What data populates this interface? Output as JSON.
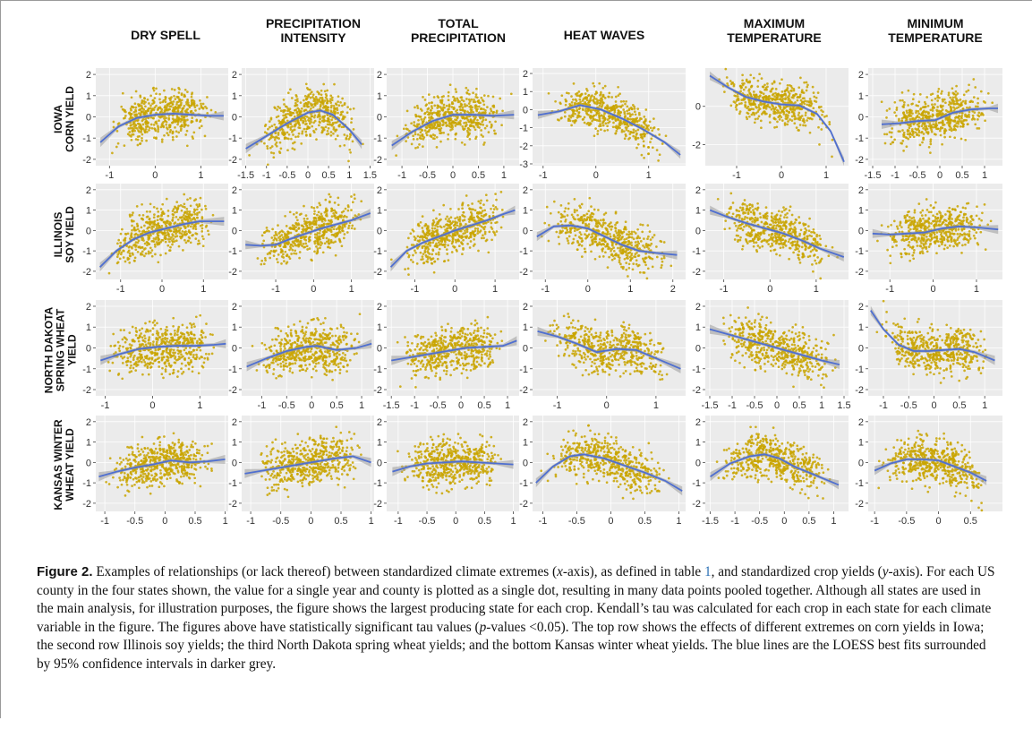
{
  "columns": [
    "DRY SPELL",
    "PRECIPITATION\nINTENSITY",
    "TOTAL\nPRECIPITATION",
    "HEAT WAVES",
    "MAXIMUM\nTEMPERATURE",
    "MINIMUM\nTEMPERATURE"
  ],
  "rows": [
    "IOWA\nCORN YIELD",
    "ILLINOIS\nSOY YIELD",
    "NORTH DAKOTA\nSPRING WHEAT\nYIELD",
    "KANSAS WINTER\nWHEAT YIELD"
  ],
  "colors": {
    "points": "#c9a400",
    "fit": "#4f6fd0",
    "ci": "#9a9a9a",
    "panel_bg": "#ebebeb",
    "grid": "#ffffff"
  },
  "chart_data": {
    "type": "scatter",
    "xlabel": "",
    "ylabel": "",
    "grid": true,
    "panels": [
      {
        "row": 0,
        "col": 0,
        "xlim": [
          -1.3,
          1.6
        ],
        "ylim": [
          -2.3,
          2.3
        ],
        "xticks": [
          -1,
          0,
          1
        ],
        "yticks": [
          -2,
          -1,
          0,
          1,
          2
        ],
        "fit_x": [
          -1.2,
          -0.8,
          -0.4,
          0,
          0.4,
          0.8,
          1.2,
          1.5
        ],
        "fit_y": [
          -1.2,
          -0.45,
          -0.05,
          0.1,
          0.15,
          0.1,
          0.05,
          0.05
        ]
      },
      {
        "row": 0,
        "col": 1,
        "xlim": [
          -1.6,
          1.6
        ],
        "ylim": [
          -2.3,
          2.3
        ],
        "xticks": [
          -1.5,
          -1.0,
          -0.5,
          0.0,
          0.5,
          1.0,
          1.5
        ],
        "yticks": [
          -2,
          -1,
          0,
          1,
          2
        ],
        "fit_x": [
          -1.5,
          -1,
          -0.5,
          0,
          0.3,
          0.6,
          1,
          1.3
        ],
        "fit_y": [
          -1.5,
          -0.9,
          -0.3,
          0.2,
          0.3,
          0.1,
          -0.6,
          -1.3
        ]
      },
      {
        "row": 0,
        "col": 2,
        "xlim": [
          -1.3,
          1.3
        ],
        "ylim": [
          -2.3,
          2.3
        ],
        "xticks": [
          -1.0,
          -0.5,
          0.0,
          0.5,
          1.0
        ],
        "yticks": [
          -2,
          -1,
          0,
          1,
          2
        ],
        "fit_x": [
          -1.2,
          -0.8,
          -0.4,
          0,
          0.4,
          0.8,
          1.2
        ],
        "fit_y": [
          -1.35,
          -0.7,
          -0.2,
          0.1,
          0.1,
          0.05,
          0.1
        ]
      },
      {
        "row": 0,
        "col": 3,
        "xlim": [
          -1.2,
          1.7
        ],
        "ylim": [
          -3.1,
          2.3
        ],
        "xticks": [
          -1,
          0,
          1
        ],
        "yticks": [
          -3,
          -2,
          -1,
          0,
          1,
          2
        ],
        "fit_x": [
          -1.1,
          -0.7,
          -0.3,
          0.1,
          0.5,
          0.9,
          1.3,
          1.6
        ],
        "fit_y": [
          -0.3,
          -0.1,
          0.25,
          0.0,
          -0.5,
          -1.1,
          -1.8,
          -2.5
        ]
      },
      {
        "row": 0,
        "col": 4,
        "xlim": [
          -1.7,
          1.5
        ],
        "ylim": [
          -3.1,
          2.0
        ],
        "xticks": [
          -1,
          0,
          1
        ],
        "yticks": [
          -2,
          0
        ],
        "fit_x": [
          -1.6,
          -1.2,
          -0.8,
          -0.4,
          0,
          0.4,
          0.8,
          1.1,
          1.4
        ],
        "fit_y": [
          1.6,
          1.0,
          0.5,
          0.25,
          0.1,
          0.05,
          -0.4,
          -1.3,
          -2.9
        ]
      },
      {
        "row": 0,
        "col": 5,
        "xlim": [
          -1.6,
          1.4
        ],
        "ylim": [
          -2.3,
          2.3
        ],
        "xticks": [
          -1.5,
          -1.0,
          -0.5,
          0.0,
          0.5,
          1.0
        ],
        "yticks": [
          -2,
          -1,
          0,
          1,
          2
        ],
        "fit_x": [
          -1.3,
          -0.9,
          -0.5,
          -0.1,
          0.3,
          0.7,
          1.1,
          1.3
        ],
        "fit_y": [
          -0.35,
          -0.3,
          -0.2,
          -0.15,
          0.2,
          0.35,
          0.4,
          0.4
        ]
      },
      {
        "row": 1,
        "col": 0,
        "xlim": [
          -1.6,
          1.6
        ],
        "ylim": [
          -2.4,
          2.3
        ],
        "xticks": [
          -1,
          0,
          1
        ],
        "yticks": [
          -2,
          -1,
          0,
          1,
          2
        ],
        "fit_x": [
          -1.5,
          -1.1,
          -0.7,
          -0.3,
          0.1,
          0.5,
          0.9,
          1.5
        ],
        "fit_y": [
          -1.8,
          -1.0,
          -0.45,
          -0.1,
          0.1,
          0.3,
          0.45,
          0.45
        ]
      },
      {
        "row": 1,
        "col": 1,
        "xlim": [
          -1.9,
          1.6
        ],
        "ylim": [
          -2.4,
          2.3
        ],
        "xticks": [
          -1,
          0,
          1
        ],
        "yticks": [
          -2,
          -1,
          0,
          1,
          2
        ],
        "fit_x": [
          -1.8,
          -1.4,
          -1.0,
          -0.6,
          -0.2,
          0.2,
          0.6,
          1.0,
          1.5
        ],
        "fit_y": [
          -0.7,
          -0.75,
          -0.7,
          -0.4,
          -0.15,
          0.1,
          0.3,
          0.5,
          0.85
        ]
      },
      {
        "row": 1,
        "col": 2,
        "xlim": [
          -1.7,
          1.6
        ],
        "ylim": [
          -2.4,
          2.3
        ],
        "xticks": [
          -1,
          0,
          1
        ],
        "yticks": [
          -2,
          -1,
          0,
          1,
          2
        ],
        "fit_x": [
          -1.6,
          -1.2,
          -0.8,
          -0.4,
          0,
          0.4,
          0.8,
          1.2,
          1.5
        ],
        "fit_y": [
          -1.8,
          -1.0,
          -0.6,
          -0.3,
          0.0,
          0.25,
          0.5,
          0.8,
          1.0
        ]
      },
      {
        "row": 1,
        "col": 3,
        "xlim": [
          -1.3,
          2.3
        ],
        "ylim": [
          -2.4,
          2.3
        ],
        "xticks": [
          -1,
          0,
          1,
          2
        ],
        "yticks": [
          -2,
          -1,
          0,
          1,
          2
        ],
        "fit_x": [
          -1.2,
          -0.8,
          -0.4,
          0,
          0.4,
          0.8,
          1.2,
          1.6,
          2.1
        ],
        "fit_y": [
          -0.3,
          0.2,
          0.25,
          0.1,
          -0.3,
          -0.7,
          -1.0,
          -1.1,
          -1.2
        ]
      },
      {
        "row": 1,
        "col": 4,
        "xlim": [
          -1.4,
          1.7
        ],
        "ylim": [
          -2.4,
          2.3
        ],
        "xticks": [
          -1,
          0,
          1
        ],
        "yticks": [
          -2,
          -1,
          0,
          1,
          2
        ],
        "fit_x": [
          -1.3,
          -0.9,
          -0.5,
          -0.1,
          0.3,
          0.7,
          1.1,
          1.6
        ],
        "fit_y": [
          1.0,
          0.65,
          0.35,
          0.1,
          -0.15,
          -0.5,
          -0.9,
          -1.3
        ]
      },
      {
        "row": 1,
        "col": 5,
        "xlim": [
          -1.5,
          1.6
        ],
        "ylim": [
          -2.4,
          2.3
        ],
        "xticks": [
          -1,
          0,
          1
        ],
        "yticks": [
          -2,
          -1,
          0,
          1,
          2
        ],
        "fit_x": [
          -1.4,
          -1.0,
          -0.6,
          -0.2,
          0.2,
          0.6,
          1.0,
          1.5
        ],
        "fit_y": [
          -0.15,
          -0.2,
          -0.15,
          -0.1,
          0.1,
          0.2,
          0.15,
          0.05
        ]
      },
      {
        "row": 2,
        "col": 0,
        "xlim": [
          -1.2,
          1.6
        ],
        "ylim": [
          -2.3,
          2.3
        ],
        "xticks": [
          -1,
          0,
          1
        ],
        "yticks": [
          -2,
          -1,
          0,
          1,
          2
        ],
        "fit_x": [
          -1.1,
          -0.7,
          -0.3,
          0.1,
          0.5,
          0.9,
          1.3,
          1.55
        ],
        "fit_y": [
          -0.6,
          -0.3,
          -0.05,
          0.05,
          0.1,
          0.1,
          0.15,
          0.2
        ]
      },
      {
        "row": 2,
        "col": 1,
        "xlim": [
          -1.4,
          1.25
        ],
        "ylim": [
          -2.3,
          2.3
        ],
        "xticks": [
          -1.0,
          -0.5,
          0.0,
          0.5,
          1.0
        ],
        "yticks": [
          -2,
          -1,
          0,
          1,
          2
        ],
        "fit_x": [
          -1.3,
          -0.9,
          -0.5,
          -0.1,
          0.1,
          0.5,
          0.9,
          1.2
        ],
        "fit_y": [
          -0.9,
          -0.5,
          -0.15,
          0.05,
          0.1,
          -0.1,
          0.0,
          0.2
        ]
      },
      {
        "row": 2,
        "col": 2,
        "xlim": [
          -1.6,
          1.25
        ],
        "ylim": [
          -2.3,
          2.3
        ],
        "xticks": [
          -1.5,
          -1.0,
          -0.5,
          0.0,
          0.5,
          1.0
        ],
        "yticks": [
          -2,
          -1,
          0,
          1,
          2
        ],
        "fit_x": [
          -1.5,
          -1.1,
          -0.7,
          -0.3,
          0.1,
          0.5,
          0.9,
          1.2
        ],
        "fit_y": [
          -0.6,
          -0.45,
          -0.3,
          -0.15,
          0.0,
          0.05,
          0.1,
          0.35
        ]
      },
      {
        "row": 2,
        "col": 3,
        "xlim": [
          -1.5,
          1.6
        ],
        "ylim": [
          -2.3,
          2.3
        ],
        "xticks": [
          -1,
          0,
          1
        ],
        "yticks": [
          -2,
          -1,
          0,
          1,
          2
        ],
        "fit_x": [
          -1.4,
          -1.0,
          -0.6,
          -0.2,
          0.2,
          0.6,
          1.0,
          1.5
        ],
        "fit_y": [
          0.8,
          0.55,
          0.2,
          -0.2,
          -0.05,
          -0.1,
          -0.5,
          -1.0
        ]
      },
      {
        "row": 2,
        "col": 4,
        "xlim": [
          -1.6,
          1.6
        ],
        "ylim": [
          -2.3,
          2.3
        ],
        "xticks": [
          -1.5,
          -1.0,
          -0.5,
          0.0,
          0.5,
          1.0,
          1.5
        ],
        "yticks": [
          -2,
          -1,
          0,
          1,
          2
        ],
        "fit_x": [
          -1.5,
          -1.0,
          -0.5,
          0.0,
          0.5,
          1.0,
          1.4
        ],
        "fit_y": [
          0.9,
          0.6,
          0.3,
          0.0,
          -0.3,
          -0.6,
          -0.8
        ]
      },
      {
        "row": 2,
        "col": 5,
        "xlim": [
          -1.3,
          1.35
        ],
        "ylim": [
          -2.3,
          2.3
        ],
        "xticks": [
          -1.0,
          -0.5,
          0.0,
          0.5,
          1.0
        ],
        "yticks": [
          -2,
          -1,
          0,
          1,
          2
        ],
        "fit_x": [
          -1.25,
          -1.0,
          -0.7,
          -0.4,
          -0.1,
          0.2,
          0.5,
          0.8,
          1.2
        ],
        "fit_y": [
          1.8,
          0.9,
          0.15,
          -0.15,
          -0.15,
          -0.1,
          -0.05,
          -0.2,
          -0.6
        ]
      },
      {
        "row": 3,
        "col": 0,
        "xlim": [
          -1.15,
          1.05
        ],
        "ylim": [
          -2.4,
          2.3
        ],
        "xticks": [
          -1.0,
          -0.5,
          0.0,
          0.5,
          1.0
        ],
        "yticks": [
          -2,
          -1,
          0,
          1,
          2
        ],
        "fit_x": [
          -1.1,
          -0.8,
          -0.5,
          -0.2,
          0.1,
          0.4,
          0.7,
          1.0
        ],
        "fit_y": [
          -0.7,
          -0.45,
          -0.25,
          -0.1,
          0.1,
          0.0,
          0.05,
          0.15
        ]
      },
      {
        "row": 3,
        "col": 1,
        "xlim": [
          -1.15,
          1.05
        ],
        "ylim": [
          -2.4,
          2.3
        ],
        "xticks": [
          -1.0,
          -0.5,
          0.0,
          0.5,
          1.0
        ],
        "yticks": [
          -2,
          -1,
          0,
          1,
          2
        ],
        "fit_x": [
          -1.1,
          -0.8,
          -0.5,
          -0.2,
          0.1,
          0.4,
          0.7,
          1.0
        ],
        "fit_y": [
          -0.55,
          -0.4,
          -0.25,
          -0.1,
          0.05,
          0.2,
          0.3,
          0.0
        ]
      },
      {
        "row": 3,
        "col": 2,
        "xlim": [
          -1.2,
          1.1
        ],
        "ylim": [
          -2.4,
          2.3
        ],
        "xticks": [
          -1.0,
          -0.5,
          0.0,
          0.5,
          1.0
        ],
        "yticks": [
          -2,
          -1,
          0,
          1,
          2
        ],
        "fit_x": [
          -1.1,
          -0.8,
          -0.5,
          -0.2,
          0.1,
          0.4,
          0.7,
          1.0
        ],
        "fit_y": [
          -0.45,
          -0.2,
          -0.05,
          0.0,
          0.05,
          0.0,
          -0.05,
          -0.1
        ]
      },
      {
        "row": 3,
        "col": 3,
        "xlim": [
          -1.15,
          1.1
        ],
        "ylim": [
          -2.4,
          2.3
        ],
        "xticks": [
          -1.0,
          -0.5,
          0.0,
          0.5,
          1.0
        ],
        "yticks": [
          -2,
          -1,
          0,
          1,
          2
        ],
        "fit_x": [
          -1.1,
          -0.85,
          -0.6,
          -0.4,
          -0.1,
          0.2,
          0.5,
          0.8,
          1.05
        ],
        "fit_y": [
          -1.0,
          -0.2,
          0.3,
          0.4,
          0.2,
          -0.15,
          -0.5,
          -0.9,
          -1.4
        ]
      },
      {
        "row": 3,
        "col": 4,
        "xlim": [
          -1.6,
          1.3
        ],
        "ylim": [
          -2.4,
          2.3
        ],
        "xticks": [
          -1.5,
          -1.0,
          -0.5,
          0.0,
          0.5,
          1.0
        ],
        "yticks": [
          -2,
          -1,
          0,
          1,
          2
        ],
        "fit_x": [
          -1.5,
          -1.1,
          -0.7,
          -0.4,
          -0.1,
          0.2,
          0.5,
          0.8,
          1.1
        ],
        "fit_y": [
          -0.7,
          -0.05,
          0.3,
          0.4,
          0.2,
          -0.2,
          -0.5,
          -0.8,
          -1.1
        ]
      },
      {
        "row": 3,
        "col": 5,
        "xlim": [
          -1.1,
          1.0
        ],
        "ylim": [
          -2.4,
          2.3
        ],
        "xticks": [
          -1.0,
          -0.5,
          0.0,
          0.5
        ],
        "yticks": [
          -2,
          -1,
          0,
          1,
          2
        ],
        "fit_x": [
          -1.0,
          -0.75,
          -0.5,
          -0.25,
          0.0,
          0.25,
          0.5,
          0.75
        ],
        "fit_y": [
          -0.4,
          -0.05,
          0.15,
          0.15,
          0.1,
          -0.2,
          -0.5,
          -0.9
        ]
      }
    ]
  },
  "caption": {
    "label": "Figure 2.",
    "seg1": " Examples of relationships (or lack thereof) between standardized climate extremes (",
    "x": "x",
    "seg2": "-axis), as defined in table ",
    "table_ref": "1",
    "seg3": ", and standardized crop yields (",
    "y": "y",
    "seg4": "-axis). For each US county in the four states shown, the value for a single year and county is plotted as a single dot, resulting in many data points pooled together. Although all states are used in the main analysis, for illustration purposes, the figure shows the largest producing state for each crop. Kendall’s tau was calculated for each crop in each state for each climate variable in the figure. The figures above have statistically significant tau values (",
    "p": "p",
    "seg5": "-values <0.05). The top row shows the effects of different extremes on corn yields in Iowa; the second row Illinois soy yields; the third North Dakota spring wheat yields; and the bottom Kansas winter wheat yields. The blue lines are the LOESS best fits surrounded by 95% confidence intervals in darker grey."
  }
}
